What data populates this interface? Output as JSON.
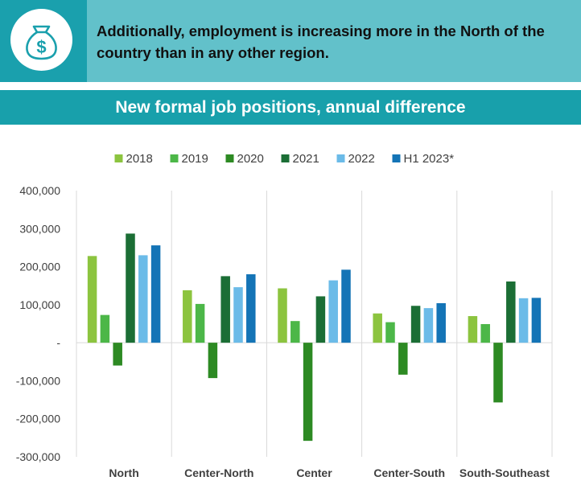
{
  "banner": {
    "icon": "money-bag-dollar-icon",
    "text": "Additionally, employment is increasing more in the North of the country than in any other region."
  },
  "colors": {
    "banner_dark": "#1aa0ad",
    "banner_light": "#62c1ca",
    "header": "#18a0ab"
  },
  "chart_data": {
    "type": "bar",
    "title": "New formal job positions, annual difference",
    "categories": [
      "North",
      "Center-North",
      "Center",
      "Center-South",
      "South-Southeast"
    ],
    "series": [
      {
        "name": "2018",
        "color": "#8cc43f",
        "values": [
          228000,
          138000,
          143000,
          77000,
          70000
        ]
      },
      {
        "name": "2019",
        "color": "#4cb748",
        "values": [
          73000,
          102000,
          57000,
          54000,
          49000
        ]
      },
      {
        "name": "2020",
        "color": "#2d8a23",
        "values": [
          -60000,
          -93000,
          -258000,
          -84000,
          -157000
        ]
      },
      {
        "name": "2021",
        "color": "#1b6e35",
        "values": [
          287000,
          175000,
          122000,
          97000,
          161000
        ]
      },
      {
        "name": "2022",
        "color": "#6bbbe8",
        "values": [
          230000,
          146000,
          164000,
          91000,
          117000
        ]
      },
      {
        "name": "H1 2023*",
        "color": "#1474b6",
        "values": [
          256000,
          180000,
          192000,
          104000,
          118000
        ]
      }
    ],
    "ylim": [
      -300000,
      400000
    ],
    "yticks": [
      {
        "value": 400000,
        "label": "400,000"
      },
      {
        "value": 300000,
        "label": "300,000"
      },
      {
        "value": 200000,
        "label": "200,000"
      },
      {
        "value": 100000,
        "label": "100,000"
      },
      {
        "value": 0,
        "label": "-"
      },
      {
        "value": -100000,
        "label": "-100,000"
      },
      {
        "value": -200000,
        "label": "-200,000"
      },
      {
        "value": -300000,
        "label": "-300,000"
      }
    ],
    "legend_position": "top-center",
    "grid": false
  }
}
